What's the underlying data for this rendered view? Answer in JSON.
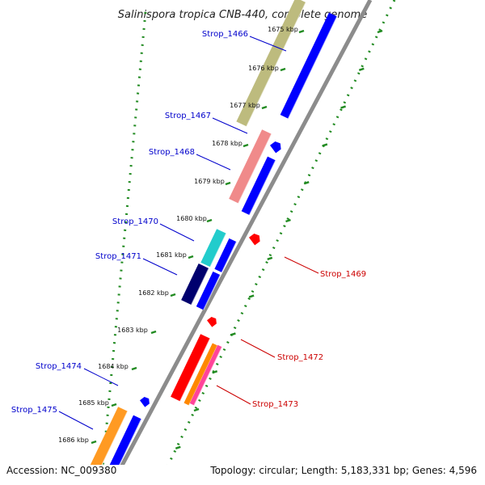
{
  "title": "Salinispora tropica CNB-440, complete genome",
  "footer": {
    "accession": "Accession: NC_009380",
    "summary": "Topology: circular; Length: 5,183,331 bp; Genes: 4,596"
  },
  "colors": {
    "background": "#ffffff",
    "backbone": "#9a9a9a",
    "tick_dots": "#228b22",
    "label_left": "#0000cc",
    "label_right": "#cc0000",
    "forward_default": "#0000ff",
    "reverse_default": "#ff0000"
  },
  "scale": {
    "unit": "kbp",
    "ticks": [
      {
        "label": "1675 kbp"
      },
      {
        "label": "1676 kbp"
      },
      {
        "label": "1677 kbp"
      },
      {
        "label": "1678 kbp"
      },
      {
        "label": "1679 kbp"
      },
      {
        "label": "1680 kbp"
      },
      {
        "label": "1681 kbp"
      },
      {
        "label": "1682 kbp"
      },
      {
        "label": "1683 kbp"
      },
      {
        "label": "1684 kbp"
      },
      {
        "label": "1685 kbp"
      },
      {
        "label": "1686 kbp"
      }
    ]
  },
  "genes_left": [
    {
      "name": "Strop_1466",
      "color": "#bdbb7e"
    },
    {
      "name": "Strop_1467",
      "color": "#f08a8a"
    },
    {
      "name": "Strop_1468",
      "color": "#0000ff"
    },
    {
      "name": "Strop_1470",
      "color": "#22cccc"
    },
    {
      "name": "Strop_1471",
      "color": "#00006e"
    },
    {
      "name": "Strop_1474",
      "color": "#0000ff"
    },
    {
      "name": "Strop_1475",
      "color": "#ff9a22"
    }
  ],
  "genes_right": [
    {
      "name": "Strop_1469",
      "color": "#ff0000"
    },
    {
      "name": "Strop_1472",
      "color": "#ff0000"
    },
    {
      "name": "Strop_1473",
      "color": "#ff4499"
    }
  ]
}
